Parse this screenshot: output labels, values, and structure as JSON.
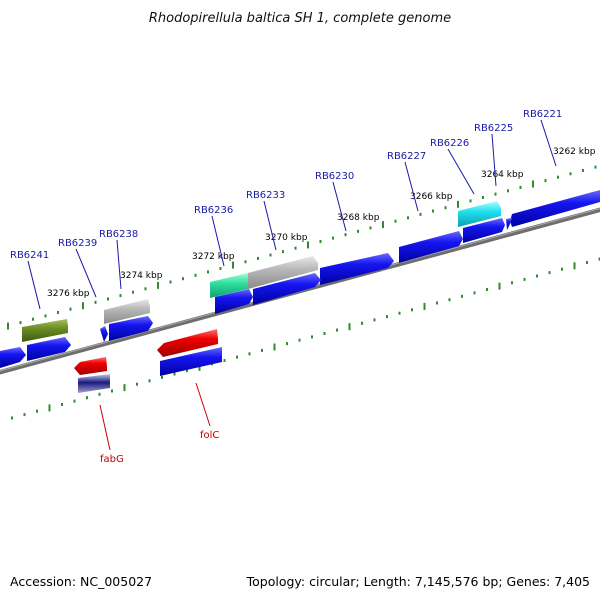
{
  "title": "Rhodopirellula baltica SH 1, complete genome",
  "footer": {
    "accession": "Accession: NC_005027",
    "summary": "Topology: circular; Length: 7,145,576 bp; Genes: 7,405"
  },
  "kbp_labels": [
    "3262 kbp",
    "3264 kbp",
    "3266 kbp",
    "3268 kbp",
    "3270 kbp",
    "3272 kbp",
    "3274 kbp",
    "3276 kbp"
  ],
  "gene_labels_top": [
    "RB6221",
    "RB6225",
    "RB6226",
    "RB6227",
    "RB6230",
    "RB6233",
    "RB6236",
    "RB6238",
    "RB6239",
    "RB6241"
  ],
  "gene_labels_bottom": [
    "folC",
    "fabG"
  ],
  "colors": {
    "cds": "#1414e0",
    "highlight_red": "#ee0000",
    "grey_gene": "#b0b0b0",
    "olive_gene": "#6b8e23",
    "green_gene": "#40e0a0",
    "cyan_gene": "#20e0f0",
    "tick": "#2e8b2e",
    "backbone": "#777777"
  }
}
